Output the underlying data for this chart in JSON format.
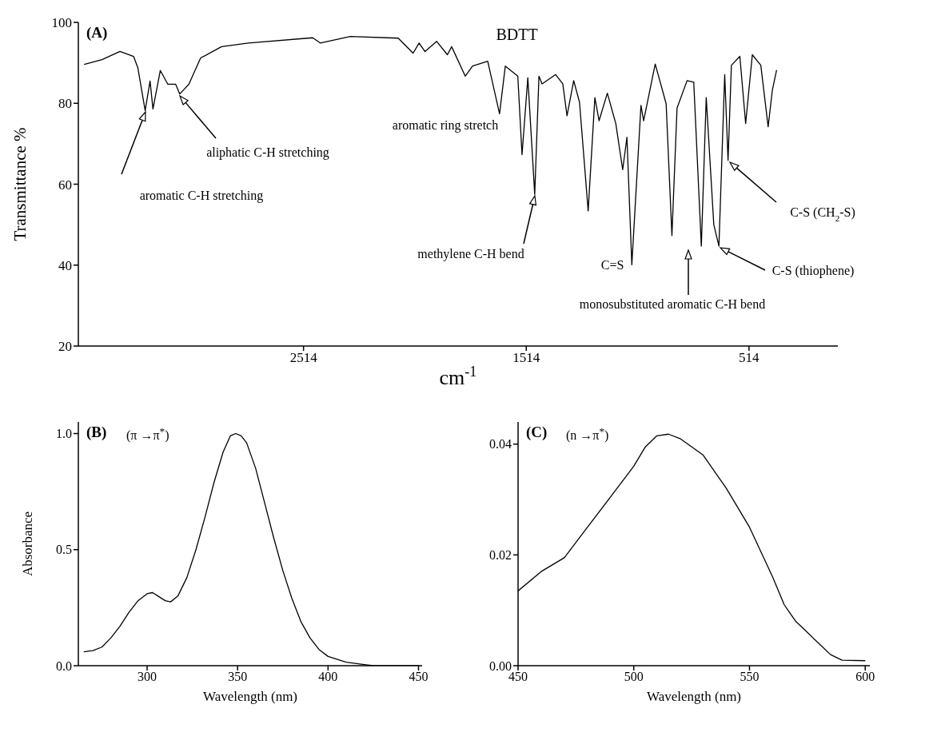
{
  "chart_data": [
    {
      "type": "line",
      "title": "(A)",
      "subtitle": "BDTT",
      "xlabel": "cm$^{-1}$",
      "ylabel": "Transmittance %",
      "color": "#000000",
      "xlim": [
        3525,
        115
      ],
      "ylim": [
        20,
        100
      ],
      "xticks": [
        2514,
        1514,
        514
      ],
      "yticks": [
        20,
        40,
        60,
        80,
        100
      ],
      "x": [
        3499,
        3419,
        3338,
        3277,
        3258,
        3225,
        3203,
        3190,
        3157,
        3123,
        3088,
        3070,
        3029,
        2976,
        2882,
        2762,
        2473,
        2439,
        2304,
        2089,
        2022,
        1995,
        1969,
        1916,
        1868,
        1849,
        1788,
        1755,
        1687,
        1634,
        1608,
        1552,
        1533,
        1507,
        1476,
        1457,
        1443,
        1382,
        1350,
        1331,
        1301,
        1275,
        1236,
        1206,
        1187,
        1150,
        1112,
        1081,
        1062,
        1040,
        1025,
        999,
        987,
        935,
        886,
        860,
        837,
        792,
        762,
        728,
        706,
        672,
        649,
        623,
        608,
        593,
        555,
        529,
        499,
        461,
        428,
        409,
        390
      ],
      "values": [
        89.6,
        90.8,
        92.8,
        91.6,
        88.8,
        78.2,
        85.5,
        78.6,
        88.1,
        84.7,
        84.7,
        82.3,
        84.7,
        91.2,
        94.0,
        94.9,
        96.2,
        94.9,
        96.5,
        96.1,
        92.4,
        94.9,
        92.8,
        95.3,
        92.0,
        94.0,
        86.7,
        89.2,
        90.4,
        77.4,
        89.2,
        86.7,
        67.3,
        86.3,
        57.5,
        86.7,
        84.8,
        87.1,
        84.8,
        76.9,
        85.6,
        80.3,
        53.4,
        81.4,
        75.7,
        82.5,
        75.0,
        63.6,
        71.6,
        40.1,
        54.5,
        79.5,
        75.7,
        89.7,
        79.9,
        47.3,
        78.8,
        85.6,
        85.2,
        44.7,
        81.4,
        50.0,
        44.7,
        87.1,
        65.9,
        89.4,
        91.6,
        75.0,
        92.0,
        89.4,
        74.2,
        83.3,
        88.2
      ],
      "annotations": [
        "aromatic C-H stretching",
        "aliphatic C-H stretching",
        "aromatic ring stretch",
        "methylene C-H bend",
        "C=S",
        "monosubstituted aromatic C-H bend",
        "C-S (thiophene)",
        "C-S (CH$_{2}$-S)"
      ]
    },
    {
      "type": "line",
      "title": "(B)",
      "subtitle": "(π →π$^{*}$)",
      "xlabel": "Wavelength (nm)",
      "ylabel": "Absorbance",
      "color": "#000000",
      "xlim": [
        262,
        452
      ],
      "ylim": [
        0,
        1.05
      ],
      "xticks": [
        300,
        350,
        400,
        450
      ],
      "yticks": [
        {
          "value": 0,
          "label": "0.0"
        },
        {
          "value": 0.5,
          "label": "0.5"
        },
        {
          "value": 1,
          "label": "1.0"
        }
      ],
      "x": [
        265,
        270,
        275,
        280,
        285,
        290,
        295,
        300,
        303,
        306,
        310,
        313,
        317,
        322,
        327,
        332,
        337,
        342,
        346,
        349,
        352,
        355,
        360,
        365,
        370,
        375,
        380,
        385,
        390,
        395,
        400,
        410,
        420,
        425,
        450
      ],
      "values": [
        0.06,
        0.065,
        0.08,
        0.12,
        0.17,
        0.23,
        0.28,
        0.31,
        0.315,
        0.3,
        0.28,
        0.275,
        0.3,
        0.38,
        0.5,
        0.64,
        0.79,
        0.92,
        0.99,
        1.0,
        0.99,
        0.96,
        0.85,
        0.7,
        0.55,
        0.41,
        0.29,
        0.19,
        0.12,
        0.07,
        0.04,
        0.015,
        0.005,
        0.0,
        0.0
      ]
    },
    {
      "type": "line",
      "title": "(C)",
      "subtitle": "(n →π$^{*}$)",
      "xlabel": "Wavelength (nm)",
      "color": "#000000",
      "xlim": [
        450,
        602
      ],
      "ylim": [
        0,
        0.044
      ],
      "xticks": [
        450,
        500,
        550,
        600
      ],
      "yticks": [
        {
          "value": 0,
          "label": "0.00"
        },
        {
          "value": 0.02,
          "label": "0.02"
        },
        {
          "value": 0.04,
          "label": "0.04"
        }
      ],
      "x": [
        450,
        460,
        470,
        480,
        490,
        500,
        505,
        510,
        515,
        520,
        530,
        540,
        550,
        560,
        565,
        570,
        580,
        585,
        590,
        600
      ],
      "values": [
        0.0135,
        0.017,
        0.0195,
        0.025,
        0.0305,
        0.036,
        0.0395,
        0.0415,
        0.0418,
        0.041,
        0.038,
        0.032,
        0.025,
        0.016,
        0.011,
        0.008,
        0.004,
        0.002,
        0.001,
        0.0009
      ]
    }
  ]
}
